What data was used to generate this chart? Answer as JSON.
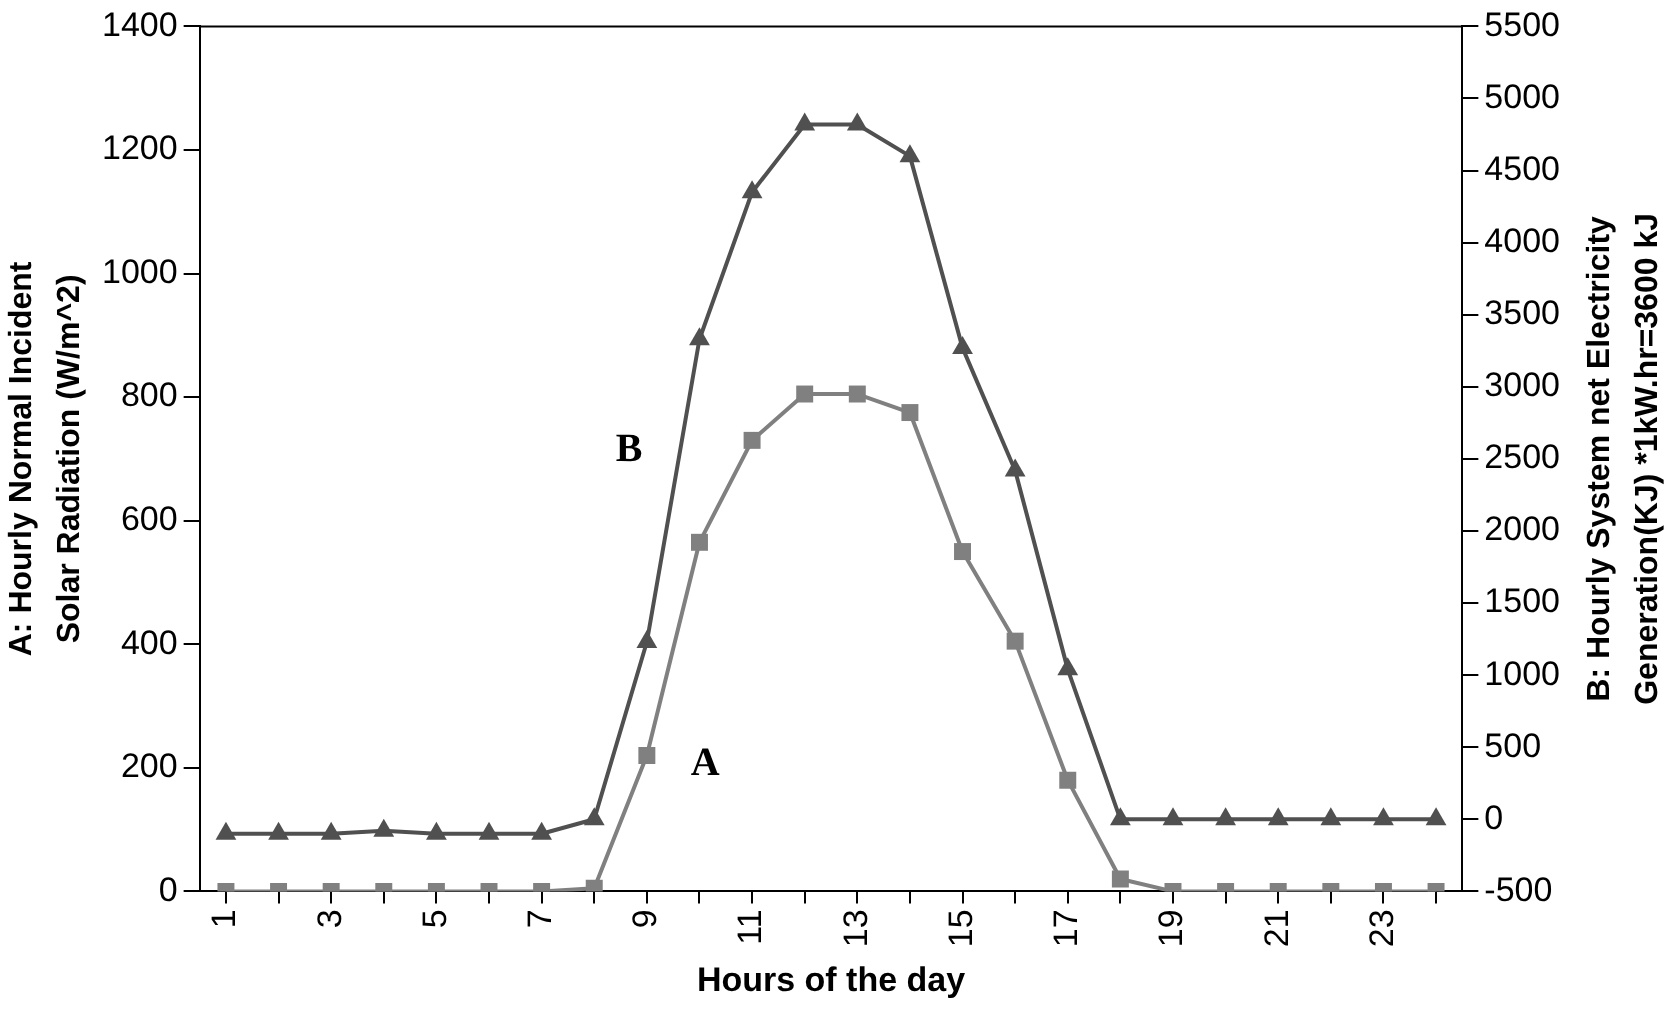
{
  "chart_data": {
    "type": "line",
    "xlabel": "Hours of the day",
    "ylabel": "A: Hourly Normal Incident Solar Radiation (W/m^2)",
    "y2label": "B: Hourly System net Electricity Generation(KJ) *1kW.hr=3600 kJ",
    "categories": [
      "1",
      null,
      "3",
      null,
      "5",
      null,
      "7",
      null,
      "9",
      null,
      "11",
      null,
      "13",
      null,
      "15",
      null,
      "17",
      null,
      "19",
      null,
      "21",
      null,
      "23",
      null
    ],
    "series": [
      {
        "name": "A",
        "color": "#808080",
        "marker": "square",
        "values": [
          0,
          0,
          0,
          0,
          0,
          0,
          0,
          5,
          220,
          565,
          730,
          805,
          805,
          775,
          550,
          405,
          180,
          20,
          0,
          0,
          0,
          0,
          0,
          0
        ]
      },
      {
        "name": "B",
        "color": "#505050",
        "marker": "triangle",
        "axis": "y2",
        "values": [
          -100,
          -100,
          -100,
          -80,
          -100,
          -100,
          -100,
          0,
          1230,
          3330,
          4350,
          4820,
          4820,
          4600,
          3270,
          2420,
          1040,
          0,
          0,
          0,
          0,
          0,
          0,
          0
        ]
      }
    ],
    "ylim": [
      0,
      1400
    ],
    "yticks": [
      0,
      200,
      400,
      600,
      800,
      1000,
      1200,
      1400
    ],
    "y2lim": [
      -500,
      5500
    ],
    "y2ticks": [
      -500,
      0,
      500,
      1000,
      1500,
      2000,
      2500,
      3000,
      3500,
      4000,
      4500,
      5000,
      5500
    ],
    "grid": false,
    "legend": false
  }
}
